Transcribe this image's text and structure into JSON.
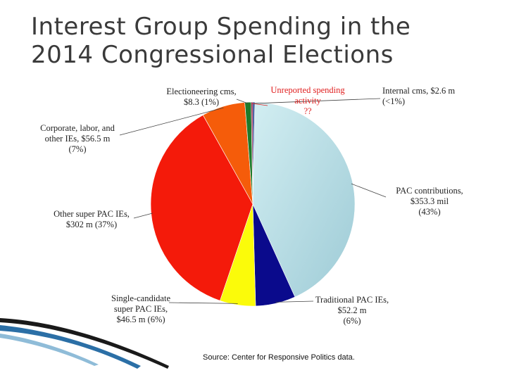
{
  "slide": {
    "title_line1": "Interest Group Spending in the",
    "title_line2": "2014 Congressional Elections",
    "source": "Source: Center for Responsive Politics data."
  },
  "chart_data": {
    "type": "pie",
    "title": "",
    "slices": [
      {
        "label_lines": [
          "Internal cms, $2.6 m",
          "(<1%)"
        ],
        "value": 2.6,
        "color": "#1f3d8c"
      },
      {
        "label_lines": [
          "PAC contributions,",
          "$353.3 mil",
          "(43%)"
        ],
        "value": 353.3,
        "color": "#aad4dc"
      },
      {
        "label_lines": [
          "Traditional PAC IEs,",
          "$52.2 m",
          "(6%)"
        ],
        "value": 52.2,
        "color": "#0a0a8c"
      },
      {
        "label_lines": [
          "Single-candidate",
          "super PAC IEs,",
          "$46.5 m (6%)"
        ],
        "value": 46.5,
        "color": "#fbfb0a"
      },
      {
        "label_lines": [
          "Other super PAC IEs,",
          "$302 m (37%)"
        ],
        "value": 302,
        "color": "#f41a0a"
      },
      {
        "label_lines": [
          "Corporate, labor, and",
          "other IEs, $56.5 m",
          "(7%)"
        ],
        "value": 56.5,
        "color": "#f55c0a"
      },
      {
        "label_lines": [
          "Electioneering cms,",
          "$8.3 (1%)"
        ],
        "value": 8.3,
        "color": "#1e7a2a"
      },
      {
        "label_lines": [
          "Unreported spending",
          "activity",
          "??"
        ],
        "value": 2.0,
        "color": "#8c0a3a",
        "label_color": "#e02020"
      }
    ]
  }
}
